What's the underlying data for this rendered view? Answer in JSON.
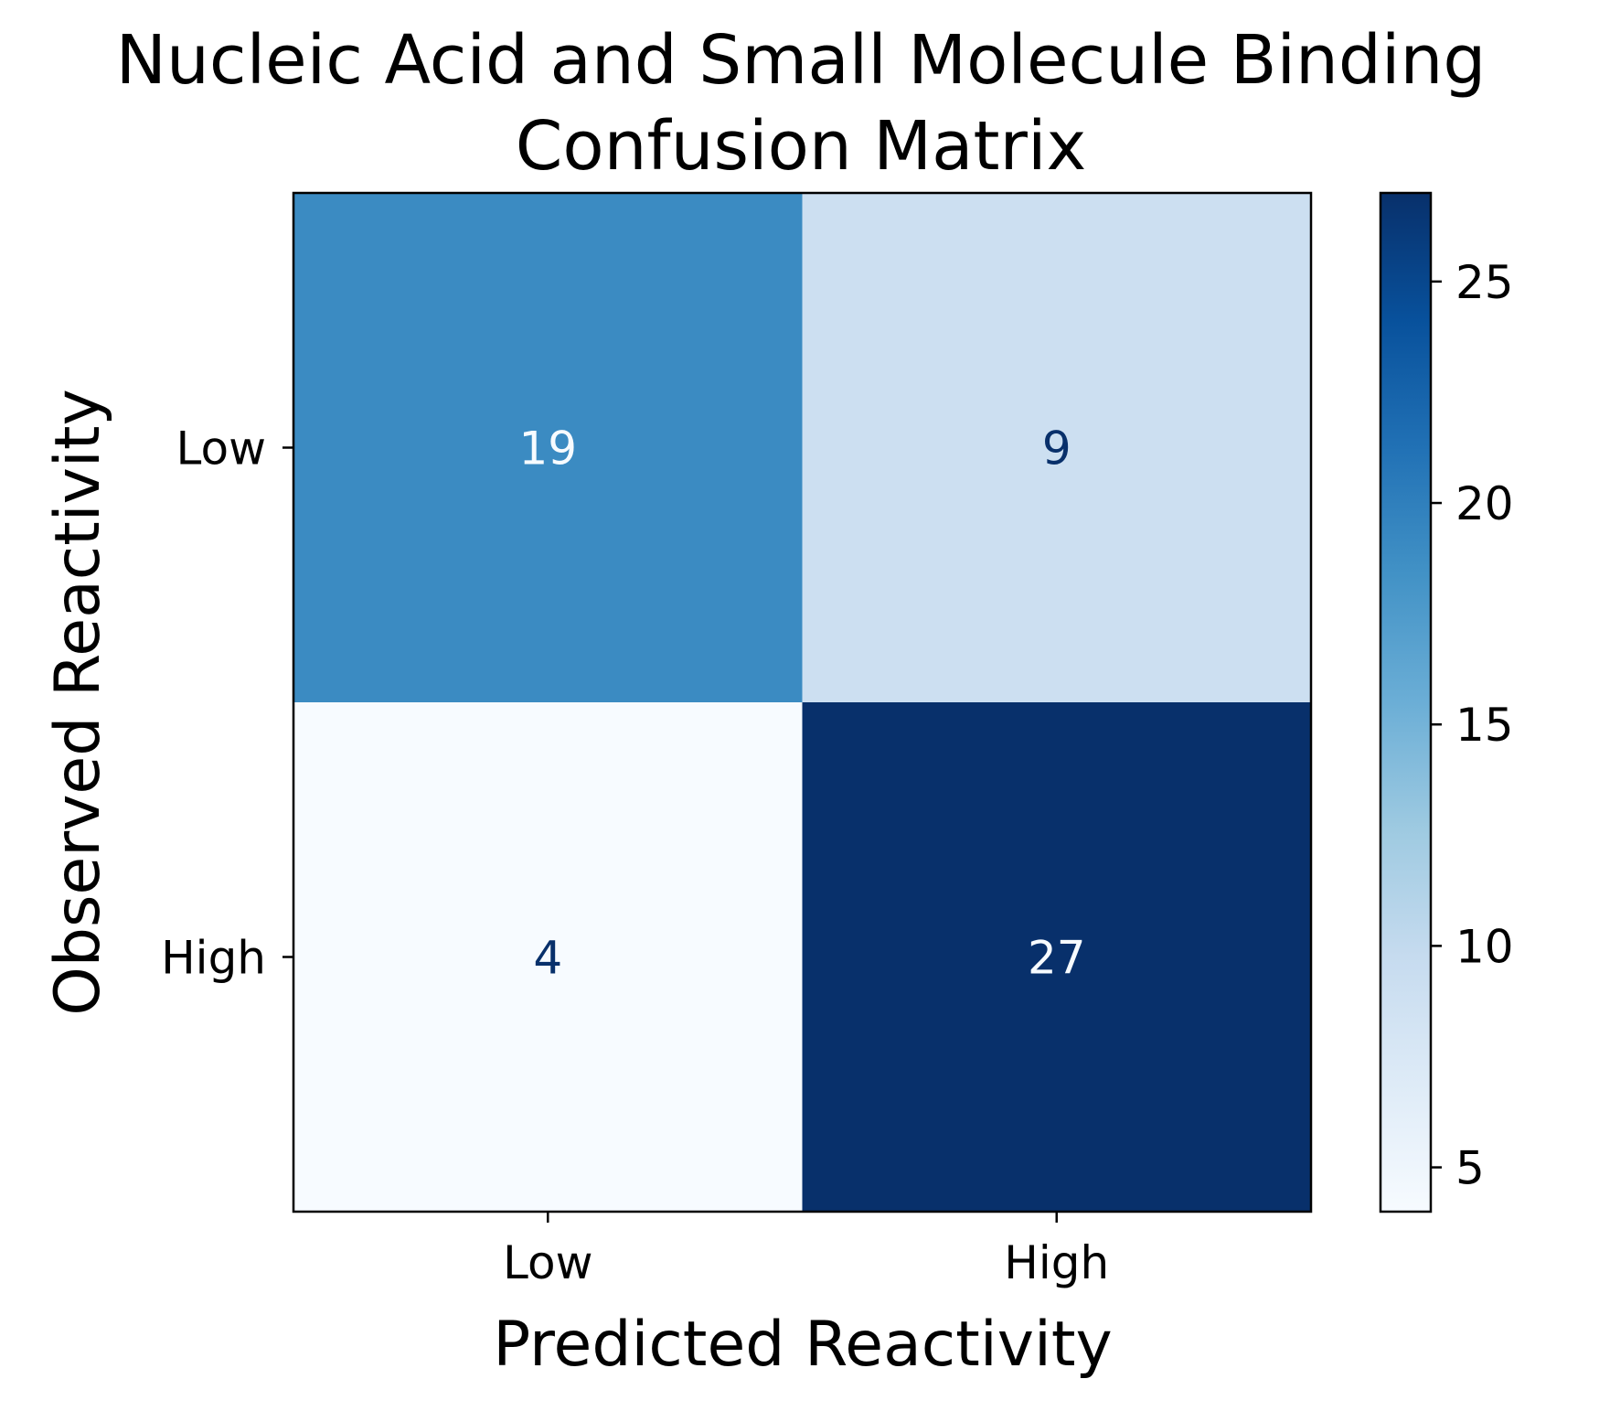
{
  "chart_data": {
    "type": "heatmap",
    "title_lines": [
      "Nucleic Acid and Small Molecule Binding",
      "Confusion Matrix"
    ],
    "xlabel": "Predicted Reactivity",
    "ylabel": "Observed Reactivity",
    "x_categories": [
      "Low",
      "High"
    ],
    "y_categories": [
      "Low",
      "High"
    ],
    "matrix": [
      [
        19,
        9
      ],
      [
        4,
        27
      ]
    ],
    "colormap": "Blues",
    "colorbar": {
      "min": 4,
      "max": 27,
      "ticks": [
        5,
        10,
        15,
        20,
        25
      ]
    },
    "colors": {
      "low": "#f7fbff",
      "high": "#08306b",
      "text_light": "#f7fbff",
      "text_dark": "#08306b"
    }
  }
}
